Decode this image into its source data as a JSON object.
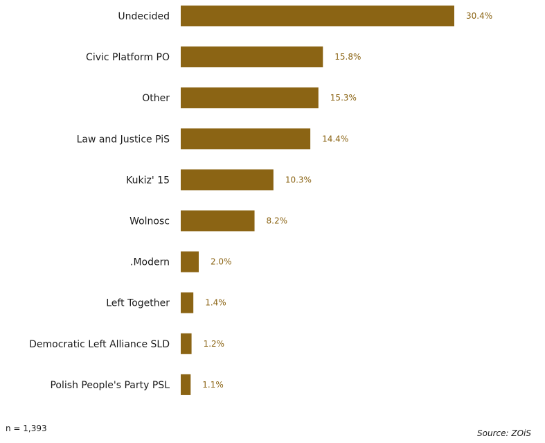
{
  "chart_data": {
    "type": "bar",
    "orientation": "horizontal",
    "categories": [
      "Undecided",
      "Civic Platform PO",
      "Other",
      "Law and Justice PiS",
      "Kukiz' 15",
      "Wolnosc",
      ".Modern",
      "Left Together",
      "Democratic Left Alliance SLD",
      "Polish People's Party PSL"
    ],
    "values": [
      30.4,
      15.8,
      15.3,
      14.4,
      10.3,
      8.2,
      2.0,
      1.4,
      1.2,
      1.1
    ],
    "value_labels": [
      "30.4%",
      "15.8%",
      "15.3%",
      "14.4%",
      "10.3%",
      "8.2%",
      "2.0%",
      "1.4%",
      "1.2%",
      "1.1%"
    ],
    "title": "",
    "xlabel": "",
    "ylabel": "",
    "xlim": [
      0,
      30.4
    ],
    "grid": false,
    "legend": "none",
    "colors": {
      "bar": "#8B6414",
      "value_label": "#8B6414",
      "category_label": "#1a1a1a"
    }
  },
  "footer": {
    "sample_size": "n = 1,393",
    "source": "Source: ZOiS"
  }
}
